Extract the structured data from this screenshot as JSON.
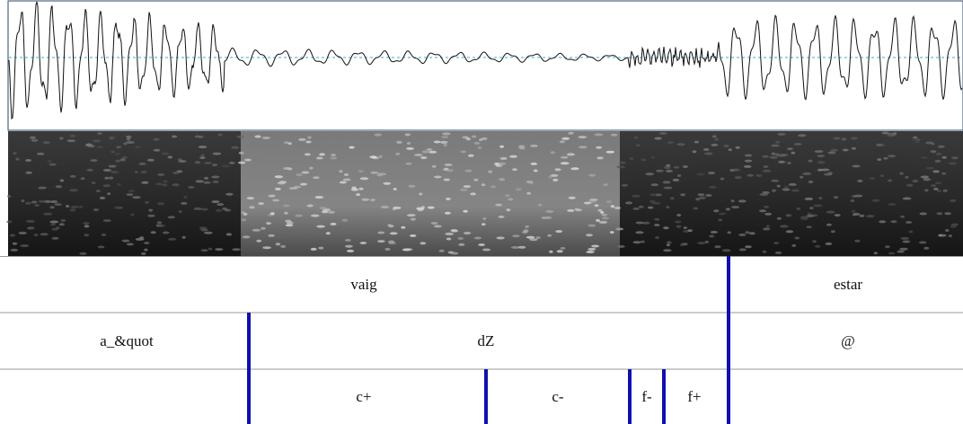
{
  "tiers": [
    [
      "vaig",
      "estar"
    ],
    [
      "a_&quot",
      "dZ",
      "@"
    ],
    [
      "c+",
      "c-",
      "f-",
      "f+"
    ]
  ]
}
